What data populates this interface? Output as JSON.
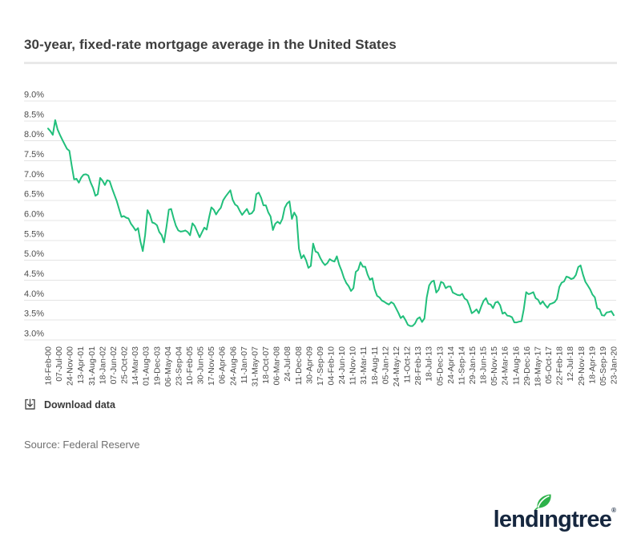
{
  "header": {
    "title": "30-year, fixed-rate mortgage average in the United States"
  },
  "chart_data": {
    "type": "line",
    "title": "30-year, fixed-rate mortgage average in the United States",
    "xlabel": "",
    "ylabel": "",
    "ylim": [
      3.0,
      9.0
    ],
    "grid": true,
    "legend_position": "none",
    "line_color": "#21bf7b",
    "y_ticks": [
      9.0,
      8.5,
      8.0,
      7.5,
      7.0,
      6.5,
      6.0,
      5.5,
      5.0,
      4.5,
      4.0,
      3.5,
      3.0
    ],
    "y_tick_labels": [
      "9.0%",
      "8.5%",
      "8.0%",
      "7.5%",
      "7.0%",
      "6.5%",
      "6.0%",
      "5.5%",
      "5.0%",
      "4.5%",
      "4.0%",
      "3.5%",
      "3.0%"
    ],
    "x_tick_labels": [
      "18-Feb-00",
      "07-Jul-00",
      "24-Nov-00",
      "13-Apr-01",
      "31-Aug-01",
      "18-Jan-02",
      "07-Jun-02",
      "25-Oct-02",
      "14-Mar-03",
      "01-Aug-03",
      "19-Dec-03",
      "06-May-04",
      "23-Sep-04",
      "10-Feb-05",
      "30-Jun-05",
      "17-Nov-05",
      "06-Apr-06",
      "24-Aug-06",
      "11-Jan-07",
      "31-May-07",
      "18-Oct-07",
      "06-Mar-08",
      "24-Jul-08",
      "11-Dec-08",
      "30-Apr-09",
      "17-Sep-09",
      "04-Feb-10",
      "24-Jun-10",
      "11-Nov-10",
      "31-Mar-11",
      "18-Aug-11",
      "05-Jan-12",
      "24-May-12",
      "11-Oct-12",
      "28-Feb-13",
      "18-Jul-13",
      "05-Dec-13",
      "24-Apr-14",
      "11-Sep-14",
      "29-Jan-15",
      "18-Jun-15",
      "05-Nov-15",
      "24-Mar-16",
      "11-Aug-16",
      "29-Dec-16",
      "18-May-17",
      "05-Oct-17",
      "22-Feb-18",
      "12-Jul-18",
      "29-Nov-18",
      "18-Apr-19",
      "05-Sep-19",
      "23-Jan-20"
    ],
    "series": [
      {
        "name": "30-year fixed-rate mortgage average (%)",
        "start": "18-Feb-00",
        "end": "23-Jan-20",
        "interval": "monthly (approx., read from weekly line)",
        "values": [
          8.31,
          8.24,
          8.15,
          8.52,
          8.29,
          8.15,
          8.03,
          7.91,
          7.8,
          7.75,
          7.38,
          7.03,
          7.05,
          6.95,
          7.08,
          7.15,
          7.16,
          7.13,
          6.95,
          6.82,
          6.62,
          6.66,
          7.07,
          7.0,
          6.89,
          7.01,
          6.99,
          6.81,
          6.65,
          6.49,
          6.29,
          6.09,
          6.11,
          6.07,
          6.05,
          5.92,
          5.84,
          5.75,
          5.81,
          5.48,
          5.23,
          5.63,
          6.26,
          6.15,
          5.95,
          5.93,
          5.88,
          5.71,
          5.63,
          5.45,
          5.83,
          6.27,
          6.29,
          6.06,
          5.87,
          5.75,
          5.72,
          5.73,
          5.75,
          5.71,
          5.63,
          5.93,
          5.86,
          5.72,
          5.58,
          5.7,
          5.82,
          5.77,
          6.07,
          6.33,
          6.27,
          6.15,
          6.25,
          6.32,
          6.51,
          6.6,
          6.68,
          6.76,
          6.52,
          6.4,
          6.36,
          6.24,
          6.14,
          6.22,
          6.29,
          6.16,
          6.18,
          6.26,
          6.66,
          6.7,
          6.57,
          6.38,
          6.38,
          6.21,
          6.1,
          5.76,
          5.92,
          5.97,
          5.92,
          6.04,
          6.32,
          6.43,
          6.48,
          6.04,
          6.2,
          6.09,
          5.29,
          5.05,
          5.13,
          5.0,
          4.81,
          4.86,
          5.42,
          5.22,
          5.19,
          5.06,
          4.95,
          4.88,
          4.93,
          5.03,
          4.99,
          4.97,
          5.1,
          4.89,
          4.74,
          4.56,
          4.43,
          4.35,
          4.23,
          4.3,
          4.71,
          4.76,
          4.95,
          4.84,
          4.84,
          4.64,
          4.51,
          4.55,
          4.27,
          4.11,
          4.07,
          3.99,
          3.96,
          3.92,
          3.89,
          3.95,
          3.91,
          3.8,
          3.68,
          3.55,
          3.6,
          3.5,
          3.38,
          3.35,
          3.35,
          3.41,
          3.53,
          3.57,
          3.45,
          3.54,
          4.07,
          4.37,
          4.46,
          4.49,
          4.19,
          4.26,
          4.46,
          4.43,
          4.3,
          4.34,
          4.34,
          4.19,
          4.16,
          4.13,
          4.12,
          4.16,
          4.04,
          4.0,
          3.86,
          3.67,
          3.71,
          3.77,
          3.67,
          3.84,
          3.98,
          4.05,
          3.91,
          3.89,
          3.8,
          3.94,
          3.96,
          3.87,
          3.66,
          3.69,
          3.61,
          3.6,
          3.57,
          3.44,
          3.44,
          3.46,
          3.47,
          3.77,
          4.2,
          4.15,
          4.17,
          4.2,
          4.05,
          4.01,
          3.9,
          3.97,
          3.88,
          3.81,
          3.9,
          3.92,
          3.95,
          4.03,
          4.33,
          4.44,
          4.47,
          4.59,
          4.57,
          4.53,
          4.55,
          4.63,
          4.83,
          4.87,
          4.64,
          4.46,
          4.37,
          4.27,
          4.14,
          4.07,
          3.8,
          3.77,
          3.62,
          3.61,
          3.69,
          3.7,
          3.72,
          3.62
        ]
      }
    ]
  },
  "controls": {
    "download_label": "Download data"
  },
  "footer": {
    "source": "Source: Federal Reserve"
  },
  "brand": {
    "name": "lendingtree",
    "text_before_leaf": "lend",
    "dotless_i": "ı",
    "text_after_leaf": "ngtree",
    "registered": "®",
    "navy": "#16273f",
    "leaf_green": "#2db24a"
  },
  "colors": {
    "line": "#21bf7b",
    "grid": "#e4e4e4",
    "axis_text": "#4d4d4d",
    "title_text": "#3d3d3d",
    "source_text": "#6f6f6f",
    "divider": "#e9e9e9"
  }
}
